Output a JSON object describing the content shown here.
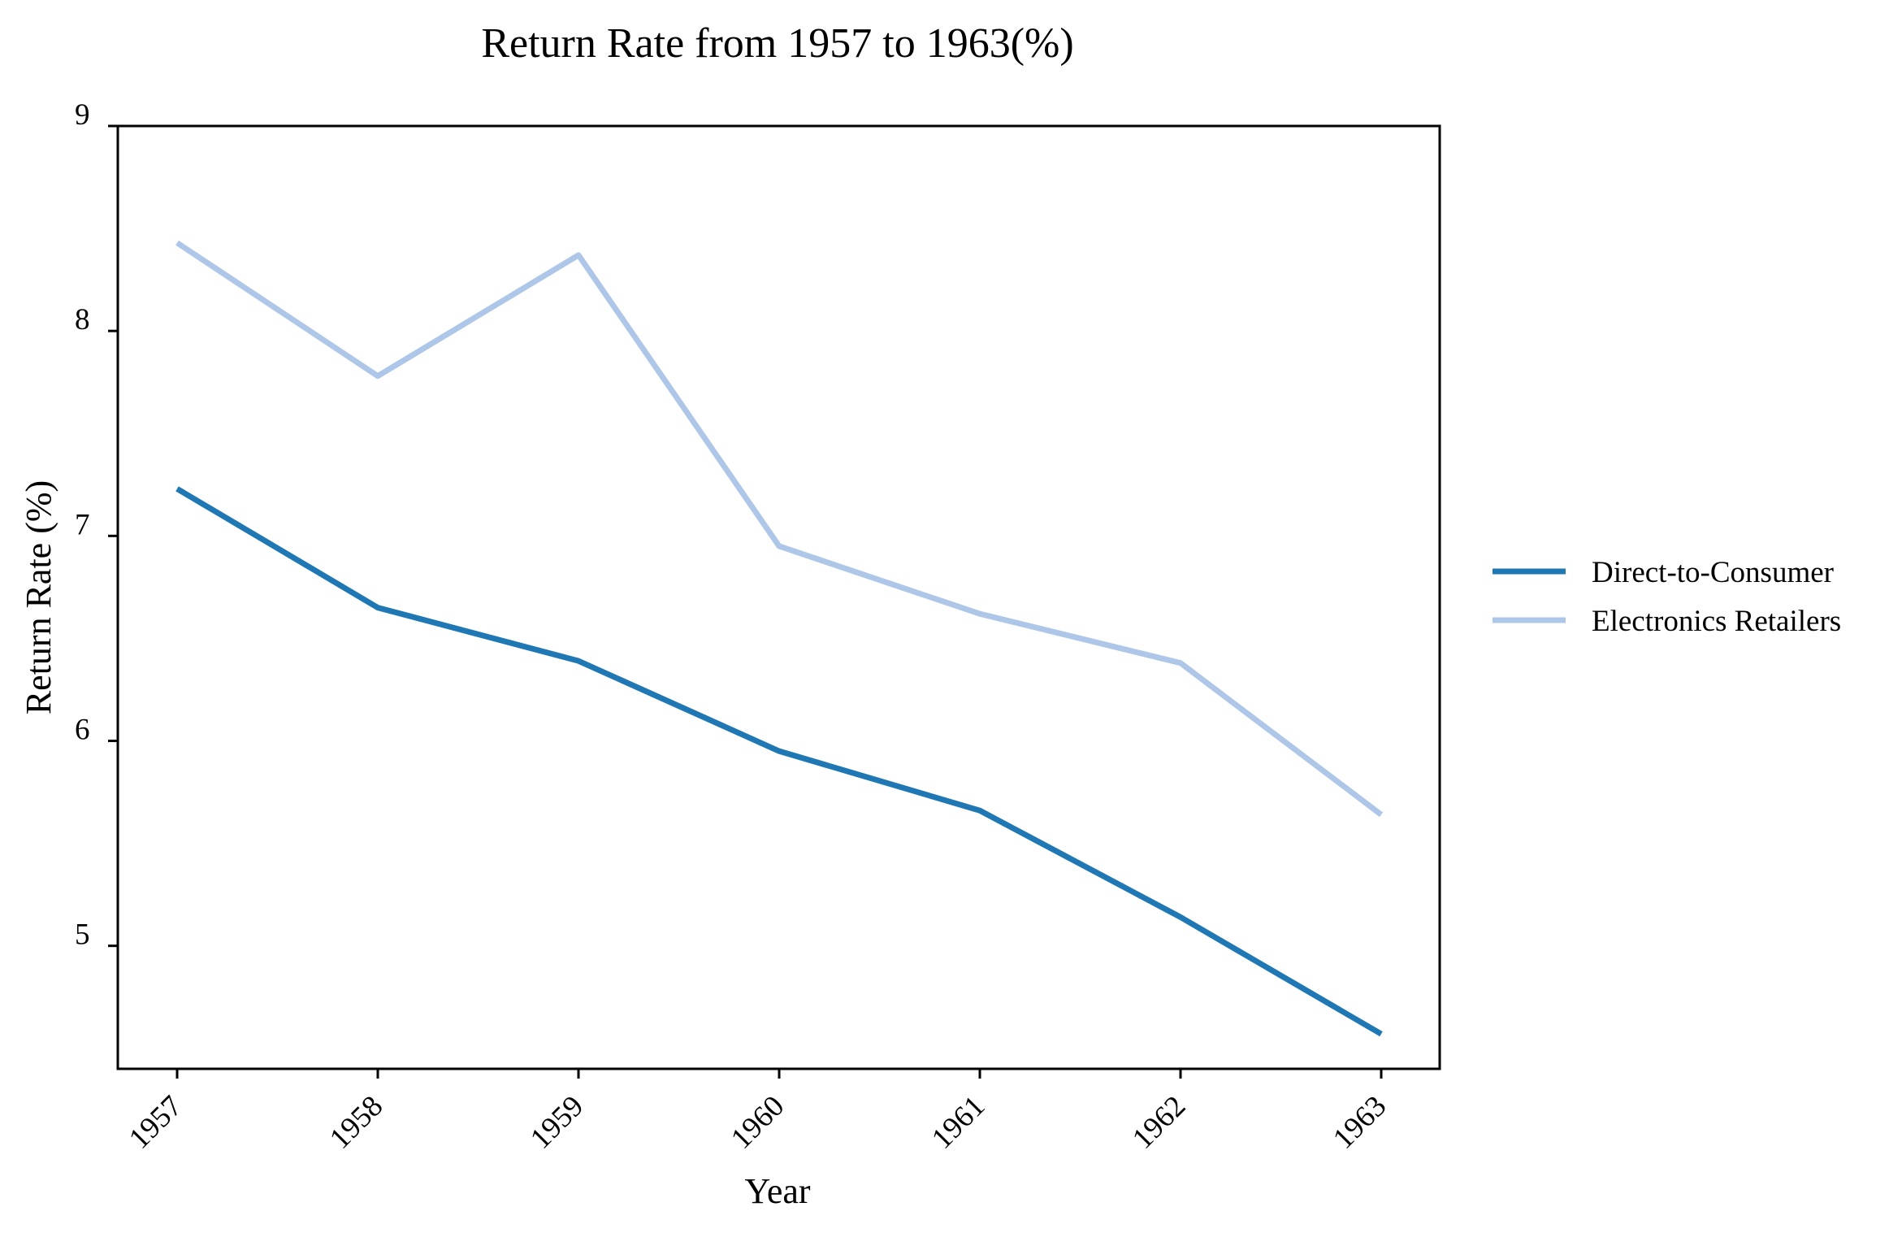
{
  "chart_data": {
    "type": "line",
    "title": "Return Rate from 1957 to 1963(%)",
    "xlabel": "Year",
    "ylabel": "Return Rate (%)",
    "categories": [
      "1957",
      "1958",
      "1959",
      "1960",
      "1961",
      "1962",
      "1963"
    ],
    "yticks": [
      5,
      6,
      7,
      8,
      9
    ],
    "ylim": [
      4.4,
      9.0
    ],
    "grid": false,
    "legend_position": "center-right",
    "series": [
      {
        "name": "Direct-to-Consumer",
        "color": "#1f77b4",
        "values": [
          7.23,
          6.65,
          6.39,
          5.95,
          5.66,
          5.14,
          4.57
        ]
      },
      {
        "name": "Electronics Retailers",
        "color": "#aec7e8",
        "values": [
          8.43,
          7.78,
          8.37,
          6.95,
          6.62,
          6.38,
          5.64
        ]
      }
    ]
  }
}
